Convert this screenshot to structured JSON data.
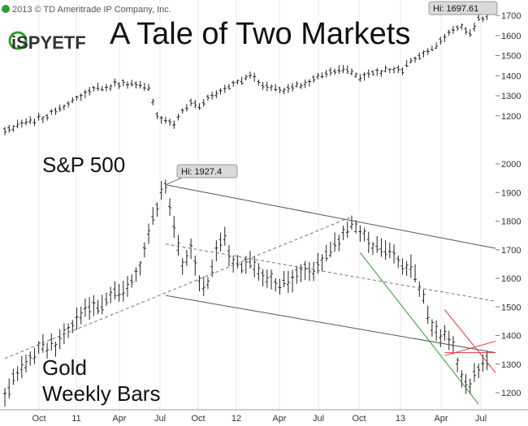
{
  "copyright": "2013 © TD Ameritrade IP Company, Inc.",
  "logo_text": "iSPYETF",
  "title": "A Tale of Two Markets",
  "sp_label": "S&P 500",
  "gold_label_line1": "Gold",
  "gold_label_line2": "Weekly Bars",
  "sp_hi_label": "Hi: 1697.61",
  "gold_hi_label": "Hi: 1927.4",
  "colors": {
    "background": "#ffffff",
    "bars": "#222222",
    "channel": "#555555",
    "dashed": "#777777",
    "green_line": "#2e9e2e",
    "red_line": "#e03a3a",
    "grid": "#e8e8e8"
  },
  "chart_data": {
    "type": "bar",
    "subtype": "weekly OHLC bars, two overlaid price series",
    "title": "A Tale of Two Markets",
    "x_tick_labels": [
      "Oct",
      "11",
      "Apr",
      "Jul",
      "Oct",
      "12",
      "Apr",
      "Jul",
      "Oct",
      "13",
      "Apr",
      "Jul"
    ],
    "series": [
      {
        "name": "S&P 500",
        "axis_ticks": [
          1200,
          1300,
          1400,
          1500,
          1600,
          1700
        ],
        "axis_tick_labels": [
          "1200",
          "1300",
          "1400",
          "1500",
          "1600",
          "1700"
        ],
        "high_label": "Hi: 1697.61",
        "anchors": [
          [
            0,
            1130
          ],
          [
            10,
            1200
          ],
          [
            16,
            1275
          ],
          [
            20,
            1330
          ],
          [
            24,
            1345
          ],
          [
            28,
            1365
          ],
          [
            32,
            1350
          ],
          [
            34,
            1340
          ],
          [
            36,
            1195
          ],
          [
            38,
            1180
          ],
          [
            40,
            1160
          ],
          [
            42,
            1230
          ],
          [
            44,
            1270
          ],
          [
            46,
            1250
          ],
          [
            48,
            1290
          ],
          [
            52,
            1330
          ],
          [
            58,
            1400
          ],
          [
            62,
            1340
          ],
          [
            66,
            1325
          ],
          [
            72,
            1370
          ],
          [
            76,
            1410
          ],
          [
            80,
            1440
          ],
          [
            84,
            1390
          ],
          [
            88,
            1420
          ],
          [
            94,
            1430
          ],
          [
            98,
            1500
          ],
          [
            102,
            1550
          ],
          [
            104,
            1590
          ],
          [
            106,
            1625
          ],
          [
            108,
            1650
          ],
          [
            110,
            1610
          ],
          [
            112,
            1680
          ],
          [
            114,
            1697
          ]
        ]
      },
      {
        "name": "Gold",
        "axis_ticks": [
          1200,
          1300,
          1400,
          1500,
          1600,
          1700,
          1800,
          1900,
          2000
        ],
        "axis_tick_labels": [
          "1200",
          "1300",
          "1400",
          "1500",
          "1600",
          "1700",
          "1800",
          "1900",
          "2000"
        ],
        "high_label": "Hi: 1927.4",
        "anchors": [
          [
            0,
            1200
          ],
          [
            4,
            1280
          ],
          [
            8,
            1350
          ],
          [
            12,
            1370
          ],
          [
            16,
            1430
          ],
          [
            20,
            1500
          ],
          [
            24,
            1520
          ],
          [
            28,
            1560
          ],
          [
            32,
            1640
          ],
          [
            34,
            1760
          ],
          [
            36,
            1850
          ],
          [
            38,
            1927
          ],
          [
            40,
            1780
          ],
          [
            42,
            1640
          ],
          [
            44,
            1710
          ],
          [
            46,
            1600
          ],
          [
            48,
            1580
          ],
          [
            50,
            1690
          ],
          [
            52,
            1740
          ],
          [
            54,
            1650
          ],
          [
            58,
            1650
          ],
          [
            62,
            1600
          ],
          [
            66,
            1580
          ],
          [
            70,
            1620
          ],
          [
            74,
            1640
          ],
          [
            78,
            1730
          ],
          [
            82,
            1790
          ],
          [
            84,
            1750
          ],
          [
            86,
            1730
          ],
          [
            88,
            1700
          ],
          [
            92,
            1670
          ],
          [
            96,
            1640
          ],
          [
            98,
            1580
          ],
          [
            100,
            1470
          ],
          [
            102,
            1420
          ],
          [
            104,
            1400
          ],
          [
            106,
            1360
          ],
          [
            108,
            1250
          ],
          [
            110,
            1230
          ],
          [
            112,
            1290
          ],
          [
            114,
            1300
          ]
        ]
      }
    ],
    "trendlines": [
      {
        "style": "solid",
        "color": "#555555",
        "role": "Gold channel top",
        "from": [
          38,
          1927
        ],
        "to": [
          116,
          1705
        ]
      },
      {
        "style": "solid",
        "color": "#555555",
        "role": "Gold channel bottom",
        "from": [
          38,
          1540
        ],
        "to": [
          116,
          1340
        ]
      },
      {
        "style": "dashed",
        "color": "#777777",
        "role": "Gold rising support",
        "from": [
          0,
          1320
        ],
        "to": [
          82,
          1815
        ]
      },
      {
        "style": "dashed",
        "color": "#777777",
        "role": "Gold midline",
        "from": [
          38,
          1720
        ],
        "to": [
          116,
          1520
        ]
      },
      {
        "style": "solid",
        "color": "#2e9e2e",
        "role": "Gold steep down line",
        "from": [
          84,
          1690
        ],
        "to": [
          112,
          1160
        ]
      },
      {
        "style": "solid",
        "color": "#e03a3a",
        "role": "Gold wedge",
        "from": [
          104,
          1490
        ],
        "to": [
          116,
          1270
        ]
      },
      {
        "style": "solid",
        "color": "#e03a3a",
        "role": "Gold wedge",
        "from": [
          104,
          1330
        ],
        "to": [
          116,
          1380
        ]
      },
      {
        "style": "solid",
        "color": "#e03a3a",
        "role": "Gold horizontal",
        "from": [
          104,
          1340
        ],
        "to": [
          116,
          1340
        ]
      }
    ]
  }
}
